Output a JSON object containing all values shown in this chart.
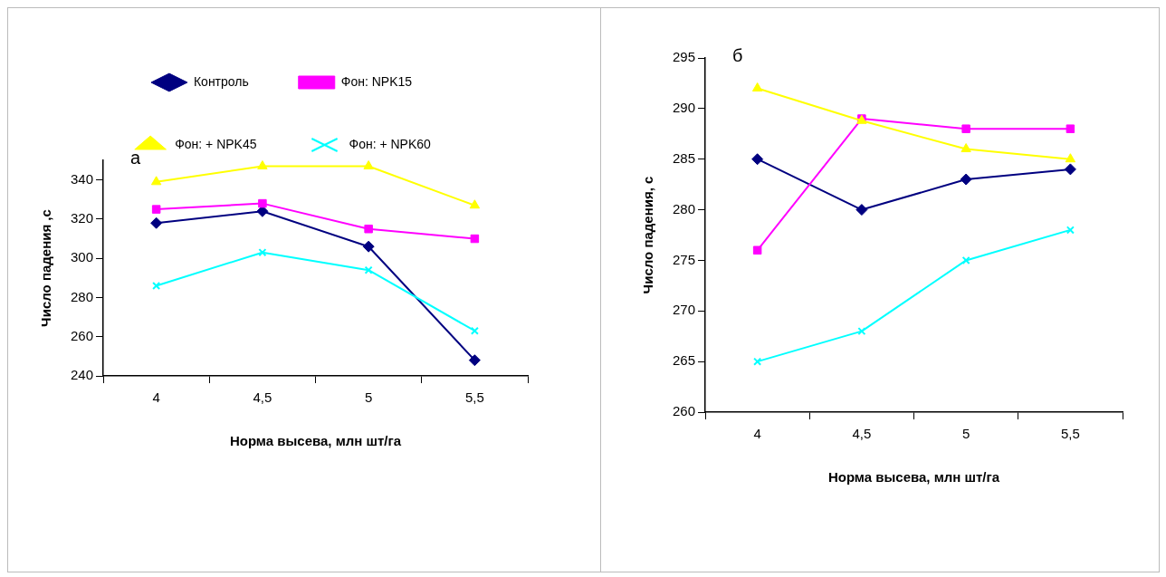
{
  "chart_data": [
    {
      "type": "line",
      "xlabel": "Норма высева, млн шт/га",
      "ylabel": "Число падения ,с",
      "categories": [
        "4",
        "4,5",
        "5",
        "5,5"
      ],
      "ylim": [
        240,
        350
      ],
      "yticks": [
        240,
        260,
        280,
        300,
        320,
        340
      ],
      "grid": false,
      "legend": "top",
      "annotations": [
        "а"
      ],
      "series": [
        {
          "name": "Контроль",
          "color": "#000080",
          "marker": "diamond",
          "values": [
            318,
            324,
            306,
            248
          ]
        },
        {
          "name": "Фон: NPK15",
          "color": "#ff00ff",
          "marker": "square",
          "values": [
            325,
            328,
            315,
            310
          ]
        },
        {
          "name": "Фон: + NPK45",
          "color": "#ffff00",
          "marker": "triangle",
          "values": [
            339,
            347,
            347,
            327
          ]
        },
        {
          "name": "Фон: + NPK60",
          "color": "#00ffff",
          "marker": "cross",
          "values": [
            286,
            303,
            294,
            263
          ]
        }
      ]
    },
    {
      "type": "line",
      "xlabel": "Норма высева, млн шт/га",
      "ylabel": "Число падения, с",
      "categories": [
        "4",
        "4,5",
        "5",
        "5,5"
      ],
      "ylim": [
        260,
        295
      ],
      "yticks": [
        260,
        265,
        270,
        275,
        280,
        285,
        290,
        295
      ],
      "grid": false,
      "legend": false,
      "annotations": [
        "б"
      ],
      "series": [
        {
          "color": "#000080",
          "marker": "diamond",
          "values": [
            285,
            280,
            283,
            284
          ]
        },
        {
          "color": "#ff00ff",
          "marker": "square",
          "values": [
            276,
            289,
            288,
            288
          ]
        },
        {
          "color": "#ffff00",
          "marker": "triangle",
          "values": [
            292,
            288.8,
            286,
            285
          ]
        },
        {
          "color": "#00ffff",
          "marker": "cross",
          "values": [
            265,
            268,
            275,
            278
          ]
        }
      ]
    }
  ]
}
